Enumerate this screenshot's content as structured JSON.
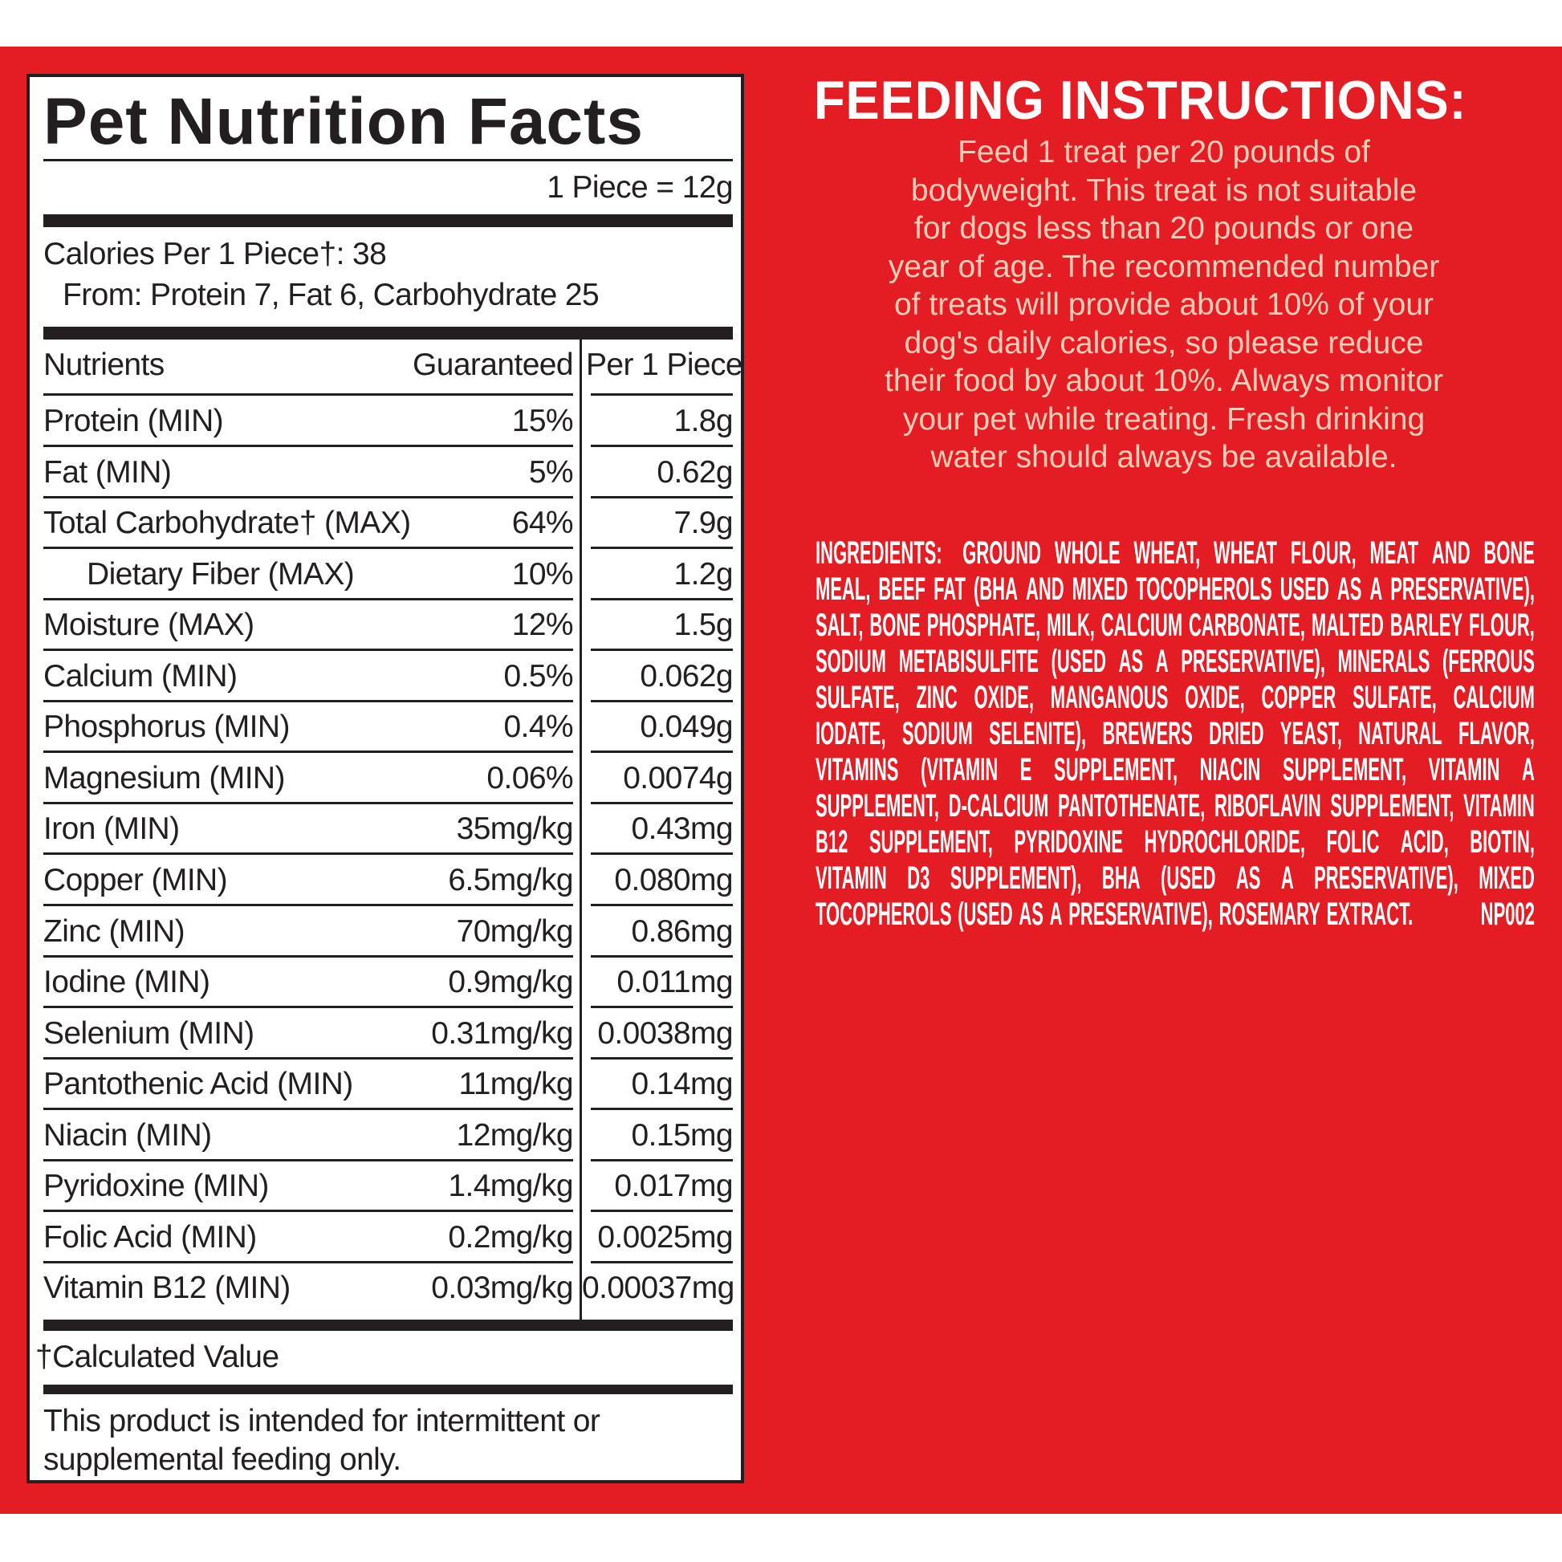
{
  "colors": {
    "background_red": "#e41d25",
    "panel_white": "#ffffff",
    "text_black": "#231f20",
    "feeding_text": "#f9cdb8"
  },
  "nutrition": {
    "title": "Pet Nutrition Facts",
    "serving": "1 Piece = 12g",
    "calories": "Calories Per 1 Piece†: 38",
    "calories_from": "From: Protein 7, Fat 6, Carbohydrate 25",
    "headers": {
      "nutrients": "Nutrients",
      "guaranteed": "Guaranteed",
      "per_piece": "Per 1 Piece"
    },
    "rows": [
      {
        "name": "Protein (MIN)",
        "guaranteed": "15%",
        "per_piece": "1.8g"
      },
      {
        "name": "Fat (MIN)",
        "guaranteed": "5%",
        "per_piece": "0.62g"
      },
      {
        "name": "Total Carbohydrate† (MAX)",
        "guaranteed": "64%",
        "per_piece": "7.9g"
      },
      {
        "name": "Dietary Fiber (MAX)",
        "guaranteed": "10%",
        "per_piece": "1.2g",
        "indent": true
      },
      {
        "name": "Moisture (MAX)",
        "guaranteed": "12%",
        "per_piece": "1.5g"
      },
      {
        "name": "Calcium (MIN)",
        "guaranteed": "0.5%",
        "per_piece": "0.062g"
      },
      {
        "name": "Phosphorus (MIN)",
        "guaranteed": "0.4%",
        "per_piece": "0.049g"
      },
      {
        "name": "Magnesium (MIN)",
        "guaranteed": "0.06%",
        "per_piece": "0.0074g"
      },
      {
        "name": "Iron (MIN)",
        "guaranteed": "35mg/kg",
        "per_piece": "0.43mg"
      },
      {
        "name": "Copper (MIN)",
        "guaranteed": "6.5mg/kg",
        "per_piece": "0.080mg"
      },
      {
        "name": "Zinc (MIN)",
        "guaranteed": "70mg/kg",
        "per_piece": "0.86mg"
      },
      {
        "name": "Iodine (MIN)",
        "guaranteed": "0.9mg/kg",
        "per_piece": "0.011mg"
      },
      {
        "name": "Selenium (MIN)",
        "guaranteed": "0.31mg/kg",
        "per_piece": "0.0038mg"
      },
      {
        "name": "Pantothenic Acid (MIN)",
        "guaranteed": "11mg/kg",
        "per_piece": "0.14mg"
      },
      {
        "name": "Niacin (MIN)",
        "guaranteed": "12mg/kg",
        "per_piece": "0.15mg"
      },
      {
        "name": "Pyridoxine (MIN)",
        "guaranteed": "1.4mg/kg",
        "per_piece": "0.017mg"
      },
      {
        "name": "Folic Acid (MIN)",
        "guaranteed": "0.2mg/kg",
        "per_piece": "0.0025mg"
      },
      {
        "name": "Vitamin B12 (MIN)",
        "guaranteed": "0.03mg/kg",
        "per_piece": "0.00037mg"
      }
    ],
    "footnote": "†Calculated Value",
    "disclaimer_lines": [
      "This product is intended for intermittent or",
      "supplemental feeding only."
    ]
  },
  "feeding": {
    "heading": "FEEDING INSTRUCTIONS:",
    "lines": [
      "Feed 1 treat per 20 pounds of",
      "bodyweight. This treat is not suitable",
      "for dogs less than 20 pounds or one",
      "year of age. The recommended number",
      "of treats will provide about 10% of your",
      "dog's daily calories, so please reduce",
      "their food by about 10%. Always monitor",
      "your pet while treating. Fresh drinking",
      "water should always be available."
    ]
  },
  "ingredients": {
    "label": "INGREDIENTS:",
    "lines": [
      "GROUND WHOLE WHEAT, WHEAT FLOUR, MEAT AND BONE",
      "MEAL, BEEF FAT (BHA AND MIXED TOCOPHEROLS USED AS A PRESERVATIVE),",
      "SALT, BONE PHOSPHATE, MILK, CALCIUM CARBONATE, MALTED BARLEY FLOUR,",
      "SODIUM METABISULFITE (USED AS A PRESERVATIVE), MINERALS (FERROUS",
      "SULFATE, ZINC OXIDE, MANGANOUS OXIDE, COPPER SULFATE, CALCIUM",
      "IODATE, SODIUM SELENITE), BREWERS DRIED YEAST, NATURAL FLAVOR,",
      "VITAMINS (VITAMIN E SUPPLEMENT, NIACIN SUPPLEMENT, VITAMIN A",
      "SUPPLEMENT, D-CALCIUM PANTOTHENATE, RIBOFLAVIN SUPPLEMENT, VITAMIN",
      "B12 SUPPLEMENT, PYRIDOXINE HYDROCHLORIDE, FOLIC ACID, BIOTIN,",
      "VITAMIN D3 SUPPLEMENT), BHA (USED AS A PRESERVATIVE), MIXED",
      "TOCOPHEROLS (USED AS A PRESERVATIVE), ROSEMARY EXTRACT."
    ],
    "code": "NP002"
  }
}
